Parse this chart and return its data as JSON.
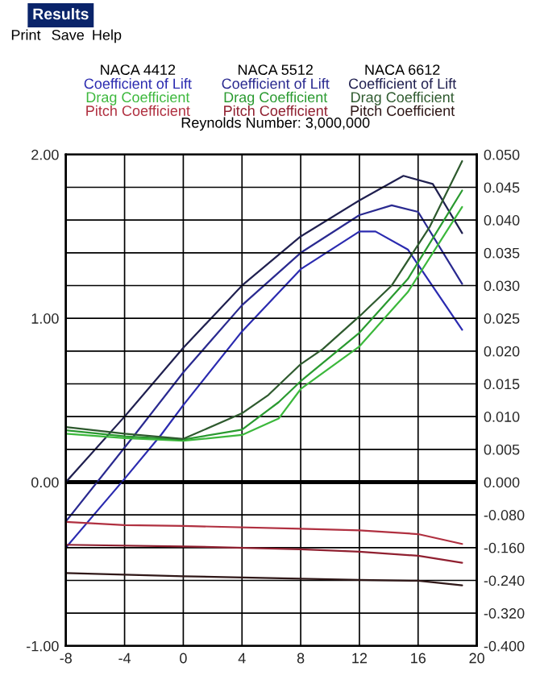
{
  "chart_data": {
    "type": "line",
    "title": "Results",
    "subtitle": "Reynolds Number: 3,000,000",
    "annotations": [
      "Print",
      "Save",
      "Help",
      "NACA 4412",
      "NACA 5512",
      "NACA 6612"
    ],
    "legend": "top",
    "grid": true,
    "marker": "none",
    "line_style": "solid",
    "xlim": [
      -8,
      20
    ],
    "xticks": [
      -8,
      -4,
      0,
      4,
      8,
      12,
      16,
      20
    ],
    "ylim": [
      -1,
      2
    ],
    "yticks": [
      {
        "value": 2,
        "label": "2.00"
      },
      {
        "value": 1,
        "label": "1.00"
      },
      {
        "value": 0,
        "label": "0.00"
      },
      {
        "value": -1,
        "label": "-1.00"
      }
    ],
    "y2lim": [
      -0.025,
      0.05
    ],
    "y2ticks": [
      {
        "value": 0,
        "label": "0.000"
      },
      {
        "value": 0.005,
        "label": "0.005"
      },
      {
        "value": 0.01,
        "label": "0.010"
      },
      {
        "value": 0.015,
        "label": "0.015"
      },
      {
        "value": 0.02,
        "label": "0.020"
      },
      {
        "value": 0.025,
        "label": "0.025"
      },
      {
        "value": 0.03,
        "label": "0.030"
      },
      {
        "value": 0.035,
        "label": "0.035"
      },
      {
        "value": 0.04,
        "label": "0.040"
      },
      {
        "value": 0.045,
        "label": "0.045"
      },
      {
        "value": 0.05,
        "label": "0.050"
      }
    ],
    "y3lim": [
      -0.4,
      0.8
    ],
    "y3ticks": [
      {
        "value": -0.08,
        "label": "-0.080"
      },
      {
        "value": -0.16,
        "label": "-0.160"
      },
      {
        "value": -0.24,
        "label": "-0.240"
      },
      {
        "value": -0.32,
        "label": "-0.320"
      },
      {
        "value": -0.4,
        "label": "-0.400"
      }
    ],
    "ref_lines": [
      {
        "axis": "y",
        "value": 0,
        "color": "#000000"
      }
    ],
    "series": [
      {
        "name": "Coefficient of Lift",
        "color": "#2b2bb0",
        "axis": "y",
        "x": [
          -8,
          -4,
          -1.5,
          0,
          4,
          8,
          12,
          13.1,
          15.3,
          19
        ],
        "values": [
          -0.4,
          0.02,
          0.29,
          0.47,
          0.92,
          1.3,
          1.53,
          1.53,
          1.42,
          0.93
        ]
      },
      {
        "name": "Drag Coefficient",
        "color": "#3cb83c",
        "axis": "y2",
        "x": [
          -8,
          -4,
          0,
          4,
          6.5,
          8,
          12,
          15.3,
          19
        ],
        "values": [
          0.0074,
          0.0067,
          0.0063,
          0.0072,
          0.0097,
          0.0142,
          0.0207,
          0.029,
          0.042
        ]
      },
      {
        "name": "Pitch Coefficient",
        "color": "#b03040",
        "axis": "y3",
        "x": [
          -8,
          -4,
          0,
          8,
          12,
          16,
          19
        ],
        "values": [
          -0.097,
          -0.105,
          -0.107,
          -0.114,
          -0.118,
          -0.127,
          -0.151
        ]
      },
      {
        "name": "Coefficient of Lift",
        "color": "#2a2a90",
        "axis": "y",
        "x": [
          -8,
          -3.3,
          0,
          4,
          8,
          12,
          14.2,
          16,
          19
        ],
        "values": [
          -0.24,
          0.29,
          0.67,
          1.08,
          1.4,
          1.63,
          1.69,
          1.65,
          1.21
        ]
      },
      {
        "name": "Drag Coefficient",
        "color": "#2a9a30",
        "axis": "y2",
        "x": [
          -8,
          -4,
          0,
          4,
          6.5,
          8,
          12,
          15.3,
          19
        ],
        "values": [
          0.0079,
          0.007,
          0.0065,
          0.008,
          0.0122,
          0.0154,
          0.0228,
          0.031,
          0.0445
        ]
      },
      {
        "name": "Pitch Coefficient",
        "color": "#902030",
        "axis": "y3",
        "x": [
          -8,
          0,
          8,
          12,
          16,
          19
        ],
        "values": [
          -0.153,
          -0.157,
          -0.164,
          -0.17,
          -0.18,
          -0.197
        ]
      },
      {
        "name": "Coefficient of Lift",
        "color": "#202050",
        "axis": "y",
        "x": [
          -8,
          -4,
          0,
          4,
          8,
          12,
          15,
          17,
          19
        ],
        "values": [
          0.0,
          0.4,
          0.82,
          1.2,
          1.5,
          1.72,
          1.87,
          1.82,
          1.52
        ]
      },
      {
        "name": "Drag Coefficient",
        "color": "#2e5a2e",
        "axis": "y2",
        "x": [
          -8,
          -4,
          0,
          4,
          5.8,
          8,
          9.5,
          12,
          14.2,
          16.8,
          19
        ],
        "values": [
          0.0084,
          0.0074,
          0.0066,
          0.0105,
          0.0133,
          0.018,
          0.0203,
          0.0253,
          0.03,
          0.039,
          0.049
        ]
      },
      {
        "name": "Pitch Coefficient",
        "color": "#301818",
        "axis": "y3",
        "x": [
          -8,
          0,
          8,
          12,
          16,
          19
        ],
        "values": [
          -0.222,
          -0.23,
          -0.236,
          -0.239,
          -0.241,
          -0.252
        ]
      }
    ]
  }
}
